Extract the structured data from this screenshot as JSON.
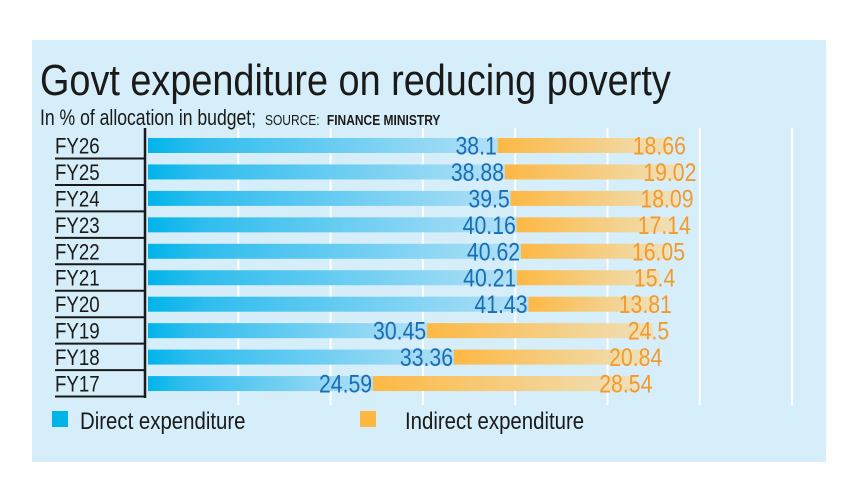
{
  "chart_data": {
    "type": "bar",
    "stacked": true,
    "orientation": "horizontal",
    "title": "Govt expenditure on reducing poverty",
    "subtitle": "In % of allocation in budget;",
    "source_label": "SOURCE:",
    "source": "FINANCE MINISTRY",
    "categories": [
      "FY26",
      "FY25",
      "FY24",
      "FY23",
      "FY22",
      "FY21",
      "FY20",
      "FY19",
      "FY18",
      "FY17"
    ],
    "series": [
      {
        "name": "Direct expenditure",
        "color": "#00b4ea",
        "label_color": "#1b6db3",
        "values": [
          38.1,
          38.88,
          39.5,
          40.16,
          40.62,
          40.21,
          41.43,
          30.45,
          33.36,
          24.59
        ]
      },
      {
        "name": "Indirect expenditure",
        "color": "#fdb844",
        "label_color": "#f29a2e",
        "values": [
          18.66,
          19.02,
          18.09,
          17.14,
          16.05,
          15.4,
          13.81,
          24.5,
          20.84,
          28.54
        ]
      }
    ],
    "xlim": [
      0,
      70
    ],
    "grid": true,
    "legend": "bottom-left"
  }
}
